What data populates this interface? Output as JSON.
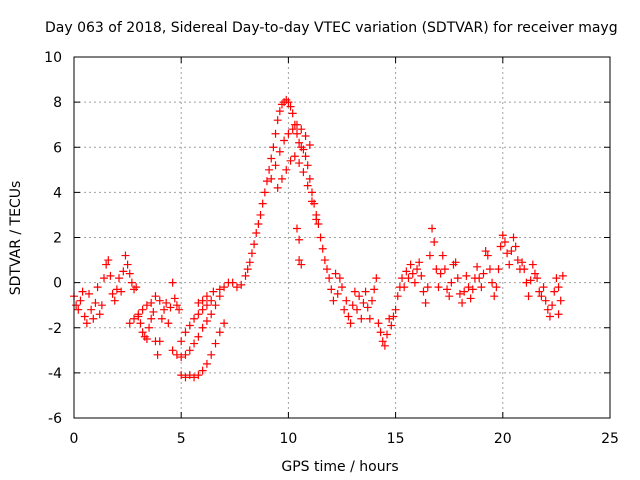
{
  "chart_data": {
    "type": "scatter",
    "title": "Day 063 of 2018, Sidereal Day-to-day VTEC variation (SDTVAR) for receiver mayg",
    "xlabel": "GPS time / hours",
    "ylabel": "SDTVAR / TECUs",
    "xlim": [
      0,
      25
    ],
    "ylim": [
      -6,
      10
    ],
    "xticks": [
      0,
      5,
      10,
      15,
      20,
      25
    ],
    "yticks": [
      -6,
      -4,
      -2,
      0,
      2,
      4,
      6,
      8,
      10
    ],
    "xtick_labels": [
      "0",
      "5",
      "10",
      "15",
      "20",
      "25"
    ],
    "ytick_labels": [
      "-6",
      "-4",
      "-2",
      "0",
      "2",
      "4",
      "6",
      "8",
      "10"
    ],
    "grid": true,
    "marker": "+",
    "series": [
      {
        "name": "SDTVAR",
        "color": "#ff0000",
        "points": [
          [
            0.0,
            -0.6
          ],
          [
            0.1,
            -1.0
          ],
          [
            0.2,
            -1.2
          ],
          [
            0.3,
            -0.8
          ],
          [
            0.4,
            -0.4
          ],
          [
            0.5,
            -1.5
          ],
          [
            0.6,
            -1.8
          ],
          [
            0.7,
            -0.5
          ],
          [
            0.8,
            -1.2
          ],
          [
            0.9,
            -1.6
          ],
          [
            1.0,
            -0.9
          ],
          [
            1.1,
            -0.2
          ],
          [
            1.2,
            -1.4
          ],
          [
            1.3,
            -1.0
          ],
          [
            1.4,
            0.2
          ],
          [
            1.5,
            0.8
          ],
          [
            1.6,
            1.0
          ],
          [
            1.7,
            0.3
          ],
          [
            1.8,
            -0.5
          ],
          [
            1.9,
            -0.8
          ],
          [
            2.0,
            -0.3
          ],
          [
            2.1,
            0.2
          ],
          [
            2.2,
            -0.4
          ],
          [
            2.3,
            0.5
          ],
          [
            2.4,
            1.2
          ],
          [
            2.5,
            0.8
          ],
          [
            2.6,
            0.4
          ],
          [
            2.7,
            0.0
          ],
          [
            2.8,
            -0.3
          ],
          [
            2.9,
            -0.2
          ],
          [
            3.0,
            -1.4
          ],
          [
            3.1,
            -1.8
          ],
          [
            3.2,
            -2.2
          ],
          [
            3.3,
            -2.4
          ],
          [
            3.4,
            -2.5
          ],
          [
            3.5,
            -2.0
          ],
          [
            3.6,
            -1.6
          ],
          [
            3.7,
            -1.3
          ],
          [
            3.8,
            -2.6
          ],
          [
            3.9,
            -3.2
          ],
          [
            4.0,
            -2.6
          ],
          [
            4.1,
            -1.6
          ],
          [
            4.2,
            -1.2
          ],
          [
            4.3,
            -0.9
          ],
          [
            4.4,
            -1.8
          ],
          [
            4.5,
            -1.1
          ],
          [
            4.6,
            0.0
          ],
          [
            4.7,
            -0.7
          ],
          [
            4.8,
            -1.0
          ],
          [
            4.9,
            -1.2
          ],
          [
            2.6,
            -1.8
          ],
          [
            2.8,
            -1.6
          ],
          [
            3.0,
            -1.5
          ],
          [
            3.2,
            -1.2
          ],
          [
            3.4,
            -1.0
          ],
          [
            3.6,
            -0.9
          ],
          [
            3.8,
            -0.6
          ],
          [
            4.0,
            -0.8
          ],
          [
            4.6,
            -3.0
          ],
          [
            4.8,
            -3.2
          ],
          [
            5.0,
            -2.6
          ],
          [
            5.2,
            -2.2
          ],
          [
            5.4,
            -1.9
          ],
          [
            5.6,
            -1.6
          ],
          [
            5.8,
            -1.4
          ],
          [
            6.0,
            -1.2
          ],
          [
            6.2,
            -1.0
          ],
          [
            6.4,
            -0.8
          ],
          [
            5.0,
            -3.3
          ],
          [
            5.2,
            -3.2
          ],
          [
            5.4,
            -3.0
          ],
          [
            5.6,
            -2.7
          ],
          [
            5.8,
            -2.4
          ],
          [
            6.0,
            -2.0
          ],
          [
            6.2,
            -1.7
          ],
          [
            6.4,
            -1.4
          ],
          [
            6.6,
            -1.0
          ],
          [
            6.8,
            -0.6
          ],
          [
            5.0,
            -4.1
          ],
          [
            5.2,
            -4.2
          ],
          [
            5.4,
            -4.1
          ],
          [
            5.6,
            -4.2
          ],
          [
            5.8,
            -4.1
          ],
          [
            6.0,
            -3.9
          ],
          [
            6.2,
            -3.6
          ],
          [
            6.4,
            -3.2
          ],
          [
            6.6,
            -2.7
          ],
          [
            6.8,
            -2.2
          ],
          [
            7.0,
            -1.8
          ],
          [
            5.8,
            -0.9
          ],
          [
            6.0,
            -0.8
          ],
          [
            6.2,
            -0.6
          ],
          [
            6.5,
            -0.4
          ],
          [
            6.8,
            -0.3
          ],
          [
            7.0,
            -0.2
          ],
          [
            7.2,
            0.0
          ],
          [
            7.4,
            0.0
          ],
          [
            7.6,
            -0.2
          ],
          [
            7.8,
            -0.1
          ],
          [
            8.0,
            0.3
          ],
          [
            8.1,
            0.6
          ],
          [
            8.2,
            0.9
          ],
          [
            8.3,
            1.3
          ],
          [
            8.4,
            1.7
          ],
          [
            8.5,
            2.2
          ],
          [
            8.6,
            2.6
          ],
          [
            8.7,
            3.0
          ],
          [
            8.8,
            3.5
          ],
          [
            8.9,
            4.0
          ],
          [
            9.0,
            4.5
          ],
          [
            9.1,
            5.0
          ],
          [
            9.2,
            5.5
          ],
          [
            9.3,
            6.0
          ],
          [
            9.4,
            6.6
          ],
          [
            9.5,
            7.2
          ],
          [
            9.6,
            7.6
          ],
          [
            9.7,
            7.9
          ],
          [
            9.8,
            8.0
          ],
          [
            9.9,
            8.1
          ],
          [
            10.0,
            8.0
          ],
          [
            10.1,
            7.8
          ],
          [
            10.2,
            7.5
          ],
          [
            10.3,
            7.0
          ],
          [
            10.4,
            6.6
          ],
          [
            10.5,
            6.2
          ],
          [
            10.6,
            6.0
          ],
          [
            10.7,
            5.9
          ],
          [
            10.8,
            5.6
          ],
          [
            10.9,
            5.2
          ],
          [
            9.2,
            4.6
          ],
          [
            9.4,
            5.2
          ],
          [
            9.6,
            5.8
          ],
          [
            9.8,
            6.3
          ],
          [
            10.0,
            6.6
          ],
          [
            10.2,
            6.8
          ],
          [
            10.4,
            7.0
          ],
          [
            10.6,
            6.8
          ],
          [
            10.8,
            6.5
          ],
          [
            11.0,
            6.1
          ],
          [
            9.5,
            4.2
          ],
          [
            9.7,
            4.6
          ],
          [
            9.9,
            5.0
          ],
          [
            10.1,
            5.4
          ],
          [
            10.3,
            5.6
          ],
          [
            10.5,
            5.3
          ],
          [
            10.7,
            4.9
          ],
          [
            10.9,
            4.3
          ],
          [
            11.1,
            3.6
          ],
          [
            11.3,
            2.8
          ],
          [
            11.0,
            4.6
          ],
          [
            11.1,
            4.0
          ],
          [
            11.2,
            3.5
          ],
          [
            11.3,
            3.0
          ],
          [
            11.4,
            2.6
          ],
          [
            11.5,
            2.0
          ],
          [
            11.6,
            1.5
          ],
          [
            11.7,
            1.0
          ],
          [
            11.8,
            0.6
          ],
          [
            11.9,
            0.2
          ],
          [
            10.4,
            2.4
          ],
          [
            10.5,
            1.9
          ],
          [
            10.5,
            1.0
          ],
          [
            10.6,
            0.8
          ],
          [
            12.0,
            -0.3
          ],
          [
            12.1,
            -0.8
          ],
          [
            12.2,
            0.4
          ],
          [
            12.3,
            -0.5
          ],
          [
            12.4,
            0.2
          ],
          [
            12.5,
            -0.2
          ],
          [
            12.6,
            -1.2
          ],
          [
            12.7,
            -0.8
          ],
          [
            12.8,
            -1.5
          ],
          [
            12.9,
            -1.8
          ],
          [
            13.0,
            -1.0
          ],
          [
            13.1,
            -0.4
          ],
          [
            13.2,
            -1.2
          ],
          [
            13.3,
            -0.6
          ],
          [
            13.4,
            -1.6
          ],
          [
            13.5,
            -0.9
          ],
          [
            13.6,
            -0.4
          ],
          [
            13.7,
            -1.1
          ],
          [
            13.8,
            -1.6
          ],
          [
            13.9,
            -0.8
          ],
          [
            14.0,
            -0.3
          ],
          [
            14.1,
            0.2
          ],
          [
            14.2,
            -1.8
          ],
          [
            14.3,
            -2.2
          ],
          [
            14.4,
            -2.6
          ],
          [
            14.5,
            -2.8
          ],
          [
            14.6,
            -2.3
          ],
          [
            14.7,
            -1.6
          ],
          [
            14.8,
            -1.9
          ],
          [
            14.9,
            -1.5
          ],
          [
            15.0,
            -1.2
          ],
          [
            15.1,
            -0.6
          ],
          [
            15.2,
            -0.2
          ],
          [
            15.3,
            0.2
          ],
          [
            15.4,
            -0.2
          ],
          [
            15.5,
            0.5
          ],
          [
            15.6,
            0.2
          ],
          [
            15.7,
            0.8
          ],
          [
            15.8,
            0.4
          ],
          [
            15.9,
            0.0
          ],
          [
            16.0,
            0.6
          ],
          [
            16.1,
            0.9
          ],
          [
            16.2,
            0.3
          ],
          [
            16.3,
            -0.4
          ],
          [
            16.4,
            -0.9
          ],
          [
            16.5,
            -0.2
          ],
          [
            16.6,
            1.2
          ],
          [
            16.7,
            2.4
          ],
          [
            16.8,
            1.8
          ],
          [
            16.9,
            0.6
          ],
          [
            17.0,
            -0.2
          ],
          [
            17.1,
            0.4
          ],
          [
            17.2,
            1.2
          ],
          [
            17.3,
            0.6
          ],
          [
            17.4,
            -0.3
          ],
          [
            17.5,
            -0.6
          ],
          [
            17.6,
            0.0
          ],
          [
            17.7,
            0.8
          ],
          [
            17.8,
            0.9
          ],
          [
            17.9,
            0.2
          ],
          [
            18.0,
            -0.5
          ],
          [
            18.1,
            -0.9
          ],
          [
            18.2,
            -0.4
          ],
          [
            18.3,
            0.3
          ],
          [
            18.4,
            -0.2
          ],
          [
            18.5,
            -0.7
          ],
          [
            18.6,
            -0.3
          ],
          [
            18.7,
            0.2
          ],
          [
            18.8,
            0.7
          ],
          [
            18.9,
            0.2
          ],
          [
            19.0,
            -0.2
          ],
          [
            19.1,
            0.4
          ],
          [
            19.2,
            1.4
          ],
          [
            19.3,
            1.2
          ],
          [
            19.4,
            0.6
          ],
          [
            19.5,
            0.0
          ],
          [
            19.6,
            -0.6
          ],
          [
            19.7,
            -0.2
          ],
          [
            19.8,
            0.6
          ],
          [
            19.9,
            1.6
          ],
          [
            20.0,
            2.1
          ],
          [
            20.1,
            1.8
          ],
          [
            20.2,
            1.3
          ],
          [
            20.3,
            0.8
          ],
          [
            20.4,
            1.4
          ],
          [
            20.5,
            2.0
          ],
          [
            20.6,
            1.6
          ],
          [
            20.7,
            1.0
          ],
          [
            20.8,
            0.6
          ],
          [
            20.9,
            0.9
          ],
          [
            21.0,
            0.6
          ],
          [
            21.1,
            0.0
          ],
          [
            21.2,
            -0.6
          ],
          [
            21.3,
            0.1
          ],
          [
            21.4,
            0.8
          ],
          [
            21.5,
            0.4
          ],
          [
            21.6,
            0.2
          ],
          [
            21.7,
            -0.4
          ],
          [
            21.8,
            -0.6
          ],
          [
            21.9,
            -0.2
          ],
          [
            22.0,
            -0.8
          ],
          [
            22.1,
            -1.2
          ],
          [
            22.2,
            -1.5
          ],
          [
            22.3,
            -1.0
          ],
          [
            22.4,
            -0.4
          ],
          [
            22.5,
            0.2
          ],
          [
            22.6,
            -0.2
          ],
          [
            22.7,
            -0.8
          ],
          [
            22.8,
            0.3
          ],
          [
            22.6,
            -1.4
          ]
        ]
      }
    ]
  }
}
